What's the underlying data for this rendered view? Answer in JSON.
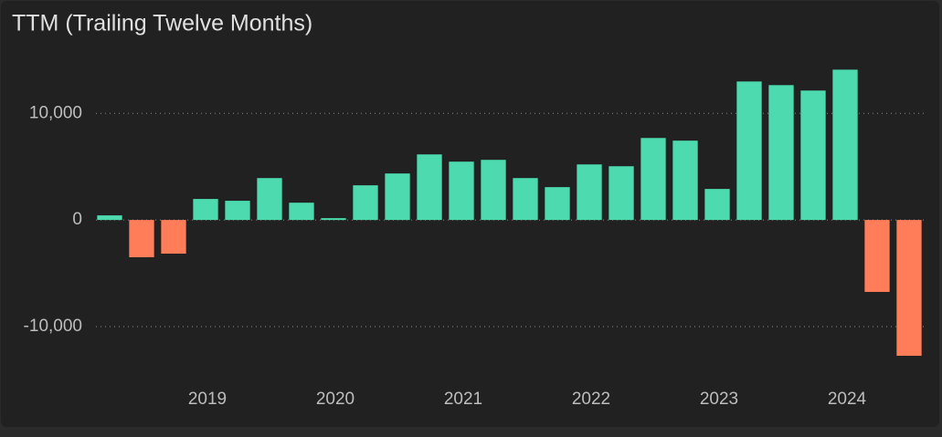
{
  "chart_data": {
    "type": "bar",
    "title": "TTM (Trailing Twelve Months)",
    "categories": [
      null,
      null,
      null,
      "2019",
      null,
      null,
      null,
      "2020",
      null,
      null,
      null,
      "2021",
      null,
      null,
      null,
      "2022",
      null,
      null,
      null,
      "2023",
      null,
      null,
      null,
      "2024",
      null,
      null
    ],
    "values": [
      430,
      -3500,
      -3160,
      1970,
      1800,
      3930,
      1620,
      170,
      3250,
      4360,
      6150,
      5470,
      5640,
      3930,
      3080,
      5210,
      5040,
      7690,
      7440,
      2910,
      12990,
      12650,
      12140,
      14100,
      -6750,
      -12740
    ],
    "positive_color": "#4cdaae",
    "negative_color": "#ff7e59",
    "ylim": [
      -13600,
      15500
    ],
    "yticks": [
      {
        "value": -10000,
        "label": "-10,000"
      },
      0,
      {
        "value": 10000,
        "label": "10,000"
      }
    ],
    "grid": true
  }
}
